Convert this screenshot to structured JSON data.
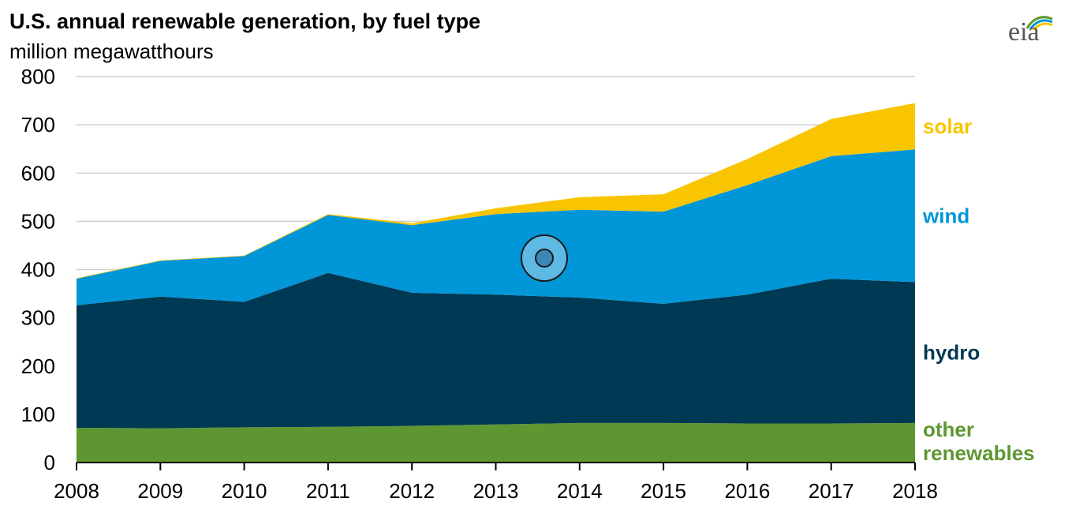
{
  "chart_data": {
    "type": "area",
    "stacked": true,
    "title": "U.S. annual renewable generation, by fuel type",
    "subtitle": "million megawatthours",
    "xlabel": "",
    "ylabel": "",
    "x": [
      2008,
      2009,
      2010,
      2011,
      2012,
      2013,
      2014,
      2015,
      2016,
      2017,
      2018
    ],
    "ylim": [
      0,
      800
    ],
    "yticks": [
      0,
      100,
      200,
      300,
      400,
      500,
      600,
      700,
      800
    ],
    "grid": true,
    "series": [
      {
        "name": "other renewables",
        "color": "#5e9732",
        "values": [
          72,
          71,
          73,
          74,
          76,
          79,
          82,
          82,
          81,
          81,
          82
        ]
      },
      {
        "name": "hydro",
        "color": "#003953",
        "values": [
          254,
          273,
          260,
          319,
          276,
          269,
          260,
          247,
          267,
          300,
          292
        ]
      },
      {
        "name": "wind",
        "color": "#0096d7",
        "values": [
          55,
          74,
          95,
          120,
          140,
          167,
          182,
          191,
          227,
          254,
          275
        ]
      },
      {
        "name": "solar",
        "color": "#f9c500",
        "values": [
          1,
          1,
          1,
          2,
          4,
          12,
          26,
          36,
          54,
          77,
          96
        ]
      }
    ],
    "series_labels": {
      "solar": "solar",
      "wind": "wind",
      "hydro": "hydro",
      "other_line1": "other",
      "other_line2": "renewables"
    }
  },
  "logo": {
    "text": "eia"
  }
}
